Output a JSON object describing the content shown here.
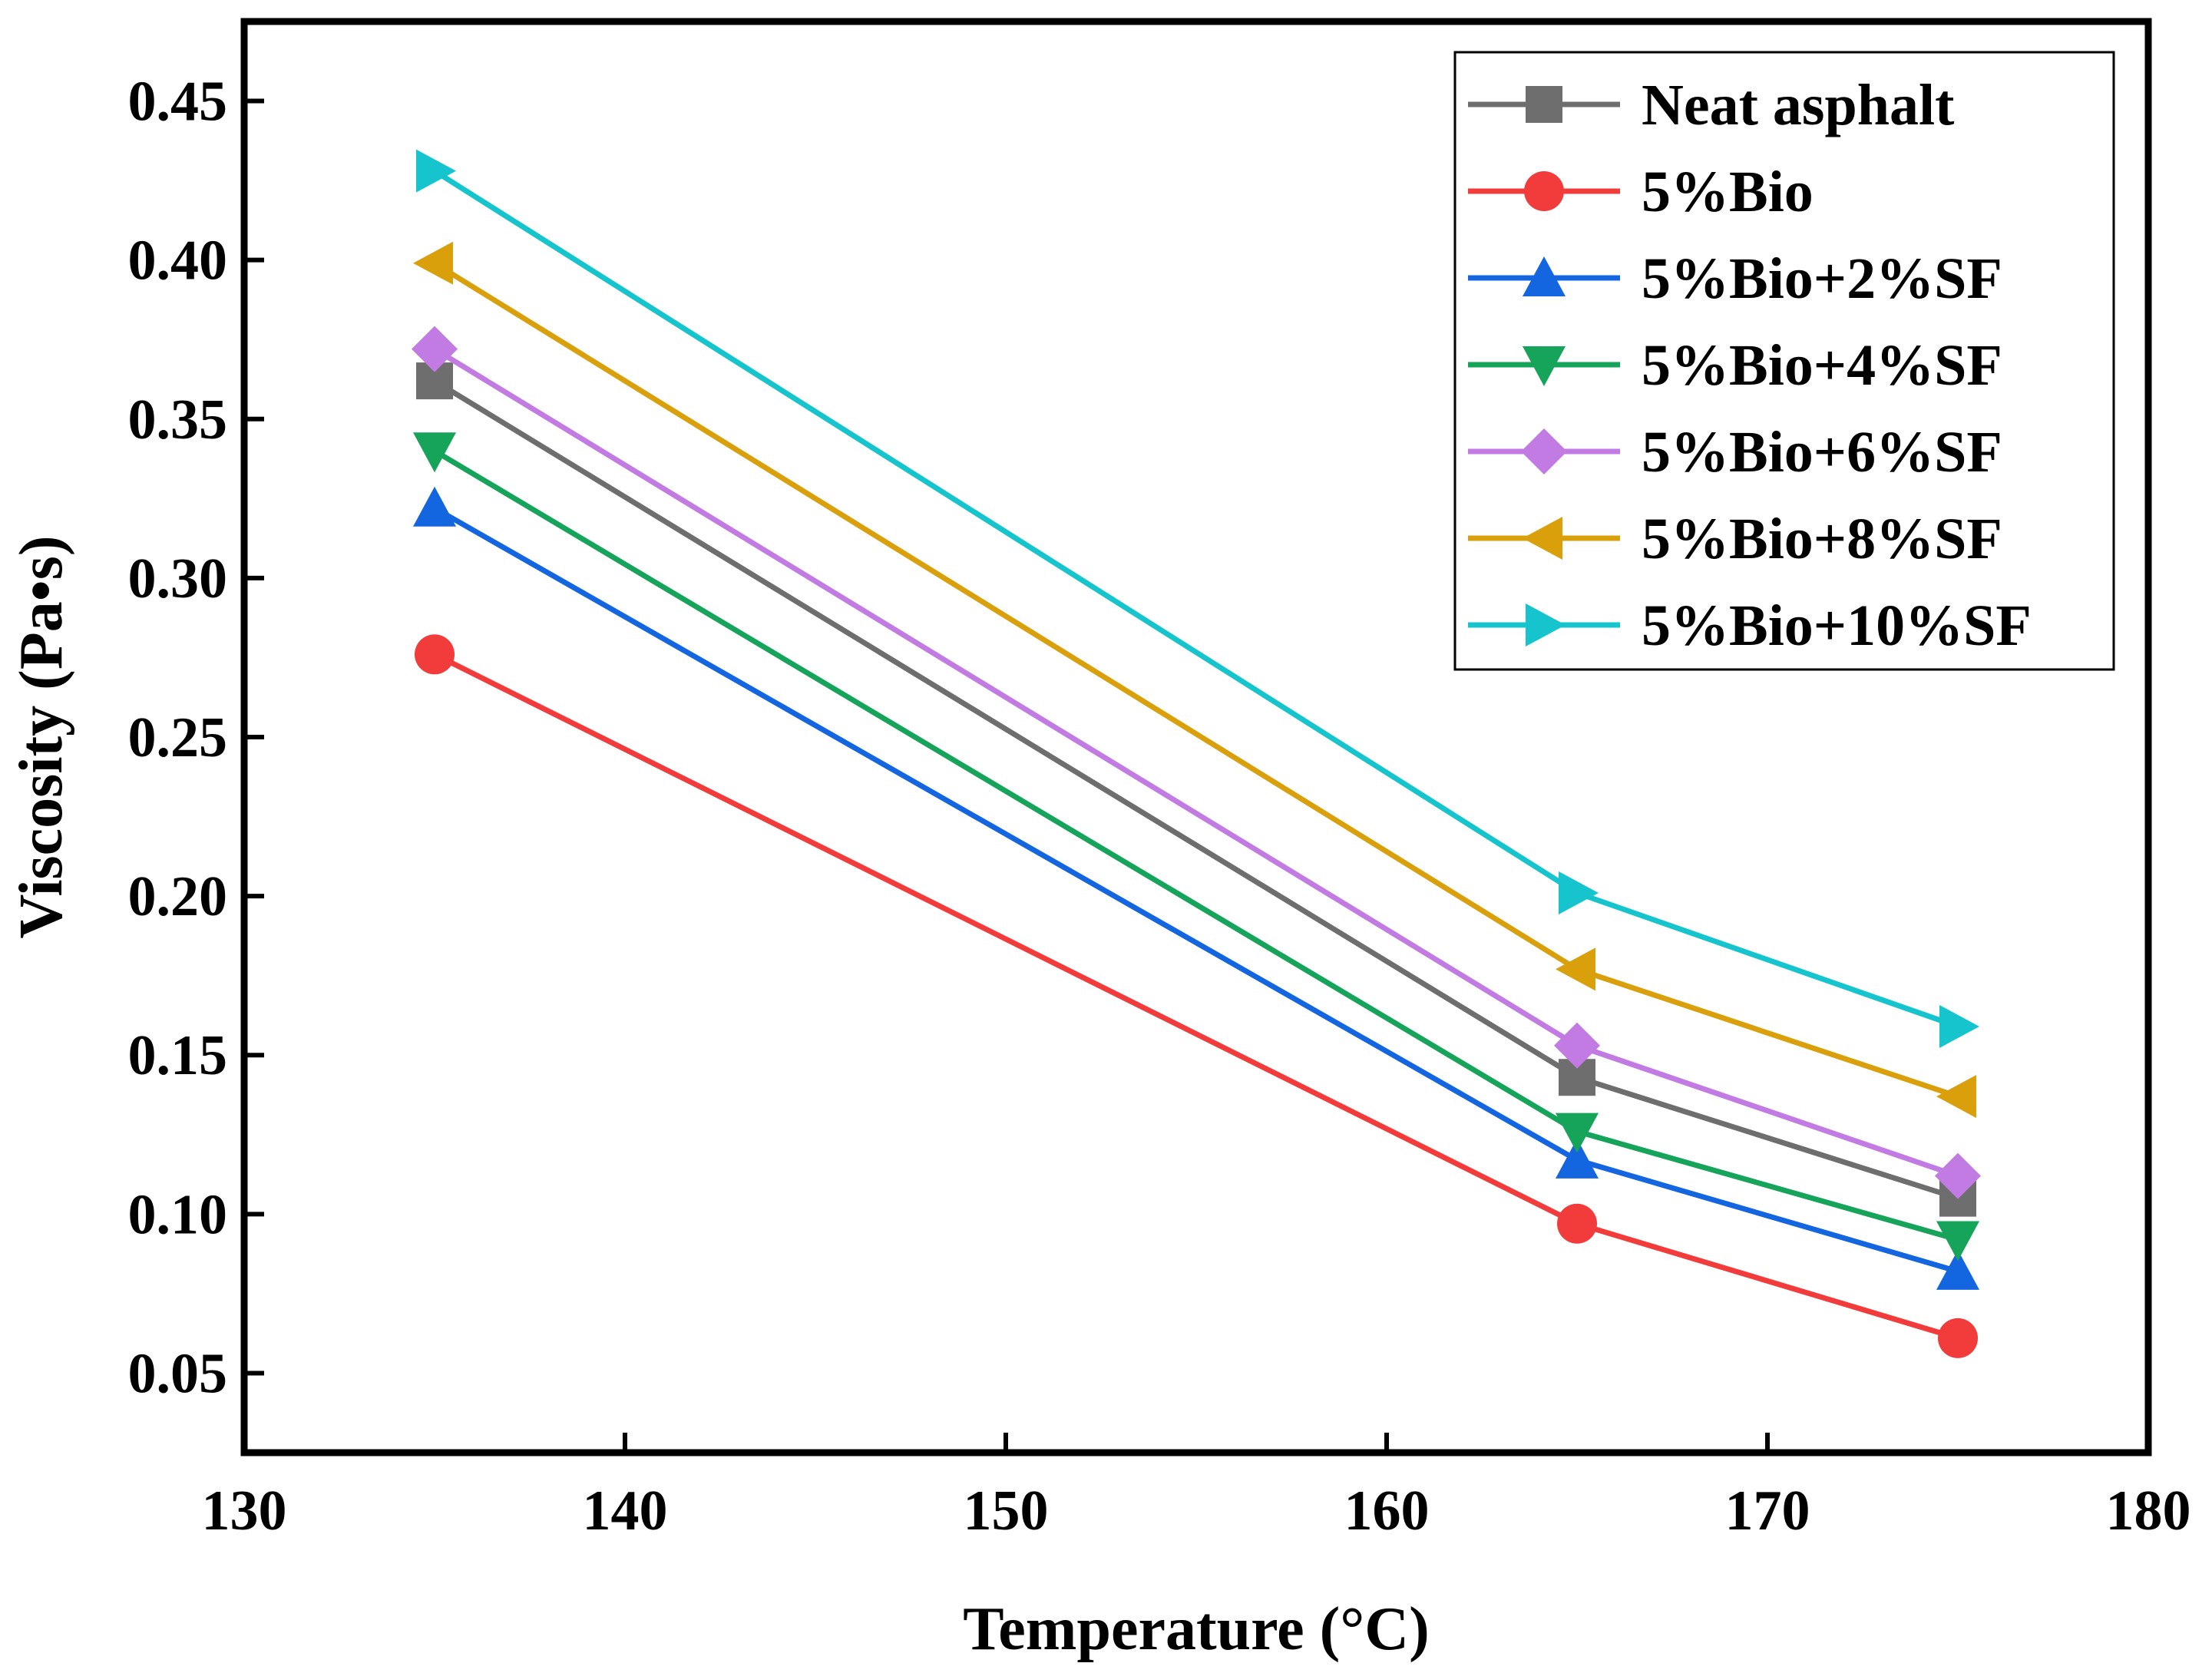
{
  "chart_data": {
    "type": "line",
    "title": "",
    "xlabel": "Temperature (°C)",
    "ylabel": "Viscosity (Pa•s)",
    "xlim": [
      130,
      180
    ],
    "ylim": [
      0.025,
      0.475
    ],
    "xticks": [
      130,
      140,
      150,
      160,
      170,
      180
    ],
    "xtick_labels": [
      "130",
      "140",
      "150",
      "160",
      "170",
      "180"
    ],
    "yticks": [
      0.05,
      0.1,
      0.15,
      0.2,
      0.25,
      0.3,
      0.35,
      0.4,
      0.45
    ],
    "ytick_labels": [
      "0.05",
      "0.10",
      "0.15",
      "0.20",
      "0.25",
      "0.30",
      "0.35",
      "0.40",
      "0.45"
    ],
    "grid": false,
    "legend_position": "top-right",
    "x": [
      135,
      165,
      175
    ],
    "series": [
      {
        "name": "Neat asphalt",
        "marker": "square",
        "color": "#6e6e6e",
        "values": [
          0.362,
          0.143,
          0.105
        ]
      },
      {
        "name": "5%Bio",
        "marker": "circle",
        "color": "#f23b3b",
        "values": [
          0.276,
          0.097,
          0.061
        ]
      },
      {
        "name": "5%Bio+2%SF",
        "marker": "triangle-up",
        "color": "#1466e0",
        "values": [
          0.322,
          0.117,
          0.082
        ]
      },
      {
        "name": "5%Bio+4%SF",
        "marker": "triangle-down",
        "color": "#16a35a",
        "values": [
          0.34,
          0.126,
          0.092
        ]
      },
      {
        "name": "5%Bio+6%SF",
        "marker": "diamond",
        "color": "#c27be3",
        "values": [
          0.372,
          0.153,
          0.112
        ]
      },
      {
        "name": "5%Bio+8%SF",
        "marker": "triangle-left",
        "color": "#d9a00b",
        "values": [
          0.399,
          0.177,
          0.137
        ]
      },
      {
        "name": "5%Bio+10%SF",
        "marker": "triangle-right",
        "color": "#15c4cc",
        "values": [
          0.428,
          0.201,
          0.159
        ]
      }
    ]
  }
}
